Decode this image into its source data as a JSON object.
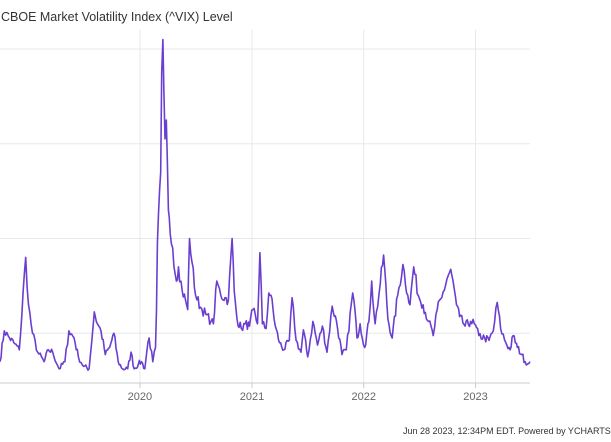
{
  "legend": {
    "label": "CBOE Market Volatility Index (^VIX) Level"
  },
  "footer": {
    "text": "Jun 28 2023, 12:34PM EDT. Powered by YCHARTS"
  },
  "colors": {
    "series": "#6a3fd0",
    "grid": "#e8e8e8",
    "axis": "#cccccc"
  },
  "chart_data": {
    "type": "line",
    "series": [
      {
        "name": "CBOE Market Volatility Index (^VIX) Level"
      }
    ],
    "x_ticks": [
      "2020",
      "2021",
      "2022",
      "2023"
    ],
    "x_range": [
      "2018-10-01",
      "2023-06-28"
    ],
    "ylim": [
      9.5,
      84
    ],
    "y_gridlines": [
      20,
      40,
      60,
      80
    ],
    "points": [
      [
        "2018-10-01",
        14.0
      ],
      [
        "2018-10-15",
        20.5
      ],
      [
        "2018-11-01",
        19.0
      ],
      [
        "2018-11-15",
        18.0
      ],
      [
        "2018-12-03",
        16.5
      ],
      [
        "2018-12-24",
        36.0
      ],
      [
        "2019-01-02",
        26.0
      ],
      [
        "2019-01-15",
        20.0
      ],
      [
        "2019-02-01",
        16.0
      ],
      [
        "2019-02-22",
        14.0
      ],
      [
        "2019-03-08",
        16.5
      ],
      [
        "2019-03-22",
        16.0
      ],
      [
        "2019-04-12",
        12.5
      ],
      [
        "2019-05-01",
        14.0
      ],
      [
        "2019-05-14",
        20.5
      ],
      [
        "2019-05-31",
        19.0
      ],
      [
        "2019-06-14",
        15.0
      ],
      [
        "2019-07-01",
        13.0
      ],
      [
        "2019-07-19",
        12.5
      ],
      [
        "2019-08-05",
        24.5
      ],
      [
        "2019-08-15",
        22.0
      ],
      [
        "2019-08-27",
        20.5
      ],
      [
        "2019-09-10",
        15.5
      ],
      [
        "2019-09-24",
        17.0
      ],
      [
        "2019-10-08",
        20.0
      ],
      [
        "2019-10-22",
        14.0
      ],
      [
        "2019-11-05",
        12.5
      ],
      [
        "2019-11-22",
        12.5
      ],
      [
        "2019-12-03",
        16.0
      ],
      [
        "2019-12-13",
        12.5
      ],
      [
        "2019-12-27",
        13.5
      ],
      [
        "2020-01-06",
        14.0
      ],
      [
        "2020-01-17",
        12.5
      ],
      [
        "2020-01-27",
        18.0
      ],
      [
        "2020-01-31",
        19.0
      ],
      [
        "2020-02-12",
        14.0
      ],
      [
        "2020-02-21",
        17.0
      ],
      [
        "2020-02-24",
        25.0
      ],
      [
        "2020-02-27",
        39.0
      ],
      [
        "2020-03-09",
        54.0
      ],
      [
        "2020-03-12",
        75.0
      ],
      [
        "2020-03-16",
        82.0
      ],
      [
        "2020-03-19",
        72.0
      ],
      [
        "2020-03-23",
        61.0
      ],
      [
        "2020-03-27",
        65.0
      ],
      [
        "2020-04-03",
        46.0
      ],
      [
        "2020-04-09",
        41.0
      ],
      [
        "2020-04-17",
        38.0
      ],
      [
        "2020-04-29",
        31.0
      ],
      [
        "2020-05-06",
        34.0
      ],
      [
        "2020-05-18",
        29.0
      ],
      [
        "2020-05-29",
        27.0
      ],
      [
        "2020-06-05",
        25.0
      ],
      [
        "2020-06-11",
        40.0
      ],
      [
        "2020-06-19",
        35.0
      ],
      [
        "2020-07-01",
        28.0
      ],
      [
        "2020-07-17",
        25.5
      ],
      [
        "2020-08-03",
        24.0
      ],
      [
        "2020-08-20",
        22.5
      ],
      [
        "2020-08-28",
        22.0
      ],
      [
        "2020-09-08",
        31.0
      ],
      [
        "2020-09-21",
        28.0
      ],
      [
        "2020-10-05",
        27.5
      ],
      [
        "2020-10-16",
        27.0
      ],
      [
        "2020-10-28",
        40.0
      ],
      [
        "2020-11-04",
        29.0
      ],
      [
        "2020-11-13",
        23.0
      ],
      [
        "2020-11-27",
        21.0
      ],
      [
        "2020-12-10",
        22.0
      ],
      [
        "2020-12-24",
        21.5
      ],
      [
        "2021-01-04",
        25.0
      ],
      [
        "2021-01-19",
        22.0
      ],
      [
        "2021-01-27",
        37.0
      ],
      [
        "2021-02-04",
        22.0
      ],
      [
        "2021-02-16",
        21.0
      ],
      [
        "2021-02-25",
        28.5
      ],
      [
        "2021-03-04",
        28.0
      ],
      [
        "2021-03-18",
        21.5
      ],
      [
        "2021-04-01",
        18.0
      ],
      [
        "2021-04-15",
        16.5
      ],
      [
        "2021-05-03",
        18.5
      ],
      [
        "2021-05-12",
        27.5
      ],
      [
        "2021-05-25",
        18.5
      ],
      [
        "2021-06-10",
        16.0
      ],
      [
        "2021-06-18",
        20.7
      ],
      [
        "2021-07-02",
        15.0
      ],
      [
        "2021-07-19",
        22.5
      ],
      [
        "2021-08-03",
        17.5
      ],
      [
        "2021-08-19",
        21.5
      ],
      [
        "2021-09-03",
        16.0
      ],
      [
        "2021-09-20",
        25.7
      ],
      [
        "2021-10-04",
        22.5
      ],
      [
        "2021-10-22",
        15.5
      ],
      [
        "2021-11-05",
        16.5
      ],
      [
        "2021-11-26",
        28.5
      ],
      [
        "2021-11-30",
        27.0
      ],
      [
        "2021-12-10",
        19.0
      ],
      [
        "2021-12-20",
        22.0
      ],
      [
        "2022-01-04",
        17.0
      ],
      [
        "2022-01-18",
        22.5
      ],
      [
        "2022-01-27",
        31.0
      ],
      [
        "2022-02-07",
        22.0
      ],
      [
        "2022-02-24",
        30.5
      ],
      [
        "2022-03-07",
        36.5
      ],
      [
        "2022-03-21",
        23.0
      ],
      [
        "2022-04-04",
        19.0
      ],
      [
        "2022-04-22",
        28.0
      ],
      [
        "2022-05-09",
        34.5
      ],
      [
        "2022-05-25",
        28.0
      ],
      [
        "2022-06-01",
        26.0
      ],
      [
        "2022-06-13",
        34.0
      ],
      [
        "2022-06-28",
        28.0
      ],
      [
        "2022-07-14",
        26.0
      ],
      [
        "2022-08-01",
        22.5
      ],
      [
        "2022-08-16",
        19.5
      ],
      [
        "2022-08-29",
        25.0
      ],
      [
        "2022-09-13",
        27.5
      ],
      [
        "2022-09-30",
        31.5
      ],
      [
        "2022-10-12",
        33.5
      ],
      [
        "2022-10-31",
        26.0
      ],
      [
        "2022-11-10",
        23.5
      ],
      [
        "2022-11-28",
        21.5
      ],
      [
        "2022-12-16",
        22.5
      ],
      [
        "2022-12-28",
        22.0
      ],
      [
        "2023-01-12",
        19.5
      ],
      [
        "2023-01-31",
        19.0
      ],
      [
        "2023-02-14",
        18.5
      ],
      [
        "2023-02-28",
        20.5
      ],
      [
        "2023-03-13",
        26.5
      ],
      [
        "2023-03-24",
        21.0
      ],
      [
        "2023-04-10",
        18.0
      ],
      [
        "2023-04-24",
        16.5
      ],
      [
        "2023-05-04",
        19.5
      ],
      [
        "2023-05-18",
        17.0
      ],
      [
        "2023-06-01",
        15.5
      ],
      [
        "2023-06-12",
        14.0
      ],
      [
        "2023-06-20",
        13.5
      ],
      [
        "2023-06-28",
        14.0
      ]
    ]
  }
}
